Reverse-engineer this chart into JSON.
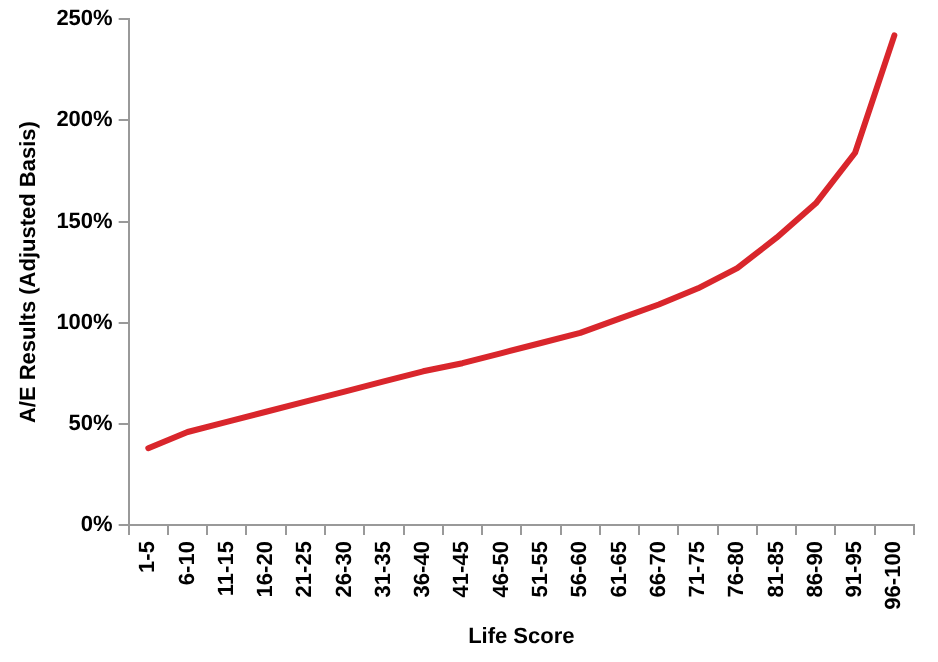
{
  "chart_data": {
    "type": "line",
    "xlabel": "Life Score",
    "ylabel": "A/E Results (Adjusted Basis)",
    "categories": [
      "1-5",
      "6-10",
      "11-15",
      "16-20",
      "21-25",
      "26-30",
      "31-35",
      "36-40",
      "41-45",
      "46-50",
      "51-55",
      "56-60",
      "61-65",
      "66-70",
      "71-75",
      "76-80",
      "81-85",
      "86-90",
      "91-95",
      "96-100"
    ],
    "series": [
      {
        "color": "#d9262c",
        "values": [
          38,
          46,
          51,
          56,
          61,
          66,
          71,
          76,
          80,
          85,
          90,
          95,
          102,
          109,
          117,
          127,
          142,
          159,
          184,
          242
        ]
      }
    ],
    "ylim": [
      0,
      250
    ],
    "yticks": [
      {
        "value": 0,
        "label": "0%"
      },
      {
        "value": 50,
        "label": "50%"
      },
      {
        "value": 100,
        "label": "100%"
      },
      {
        "value": 150,
        "label": "150%"
      },
      {
        "value": 200,
        "label": "200%"
      },
      {
        "value": 250,
        "label": "250%"
      }
    ],
    "grid": false,
    "legend": false,
    "marker": "none",
    "line_style": "solid"
  }
}
